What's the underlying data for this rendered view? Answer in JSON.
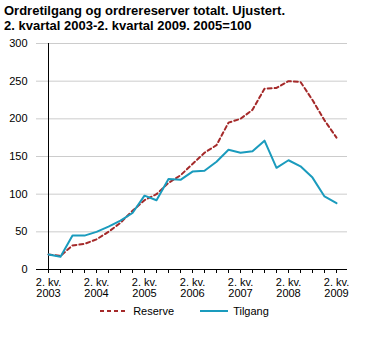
{
  "chart_data": {
    "type": "line",
    "title": "Ordretilgang og ordrereserver totalt. Ujustert.",
    "subtitle": "2. kvartal 2003-2. kvartal 2009. 2005=100",
    "categories": [
      "2. kv.\n2003",
      null,
      null,
      null,
      "2. kv.\n2004",
      null,
      null,
      null,
      "2. kv.\n2005",
      null,
      null,
      null,
      "2. kv.\n2006",
      null,
      null,
      null,
      "2. kv.\n2007",
      null,
      null,
      null,
      "2. kv.\n2008",
      null,
      null,
      null,
      "2. kv.\n2009"
    ],
    "series": [
      {
        "name": "Reserve",
        "color": "#a52a2a",
        "line_style": "dashed",
        "values": [
          20,
          18,
          32,
          34,
          40,
          50,
          62,
          78,
          92,
          100,
          115,
          125,
          140,
          155,
          165,
          195,
          200,
          212,
          240,
          241,
          250,
          249,
          225,
          198,
          175
        ]
      },
      {
        "name": "Tilgang",
        "color": "#1a9bbd",
        "line_style": "solid",
        "values": [
          20,
          17,
          45,
          45,
          50,
          57,
          65,
          75,
          98,
          92,
          120,
          119,
          130,
          131,
          143,
          159,
          155,
          157,
          171,
          135,
          145,
          137,
          122,
          97,
          88
        ]
      }
    ],
    "ylim": [
      0,
      300
    ],
    "yticks": [
      0,
      50,
      100,
      150,
      200,
      250,
      300
    ],
    "grid": true,
    "legend": "bottom"
  }
}
